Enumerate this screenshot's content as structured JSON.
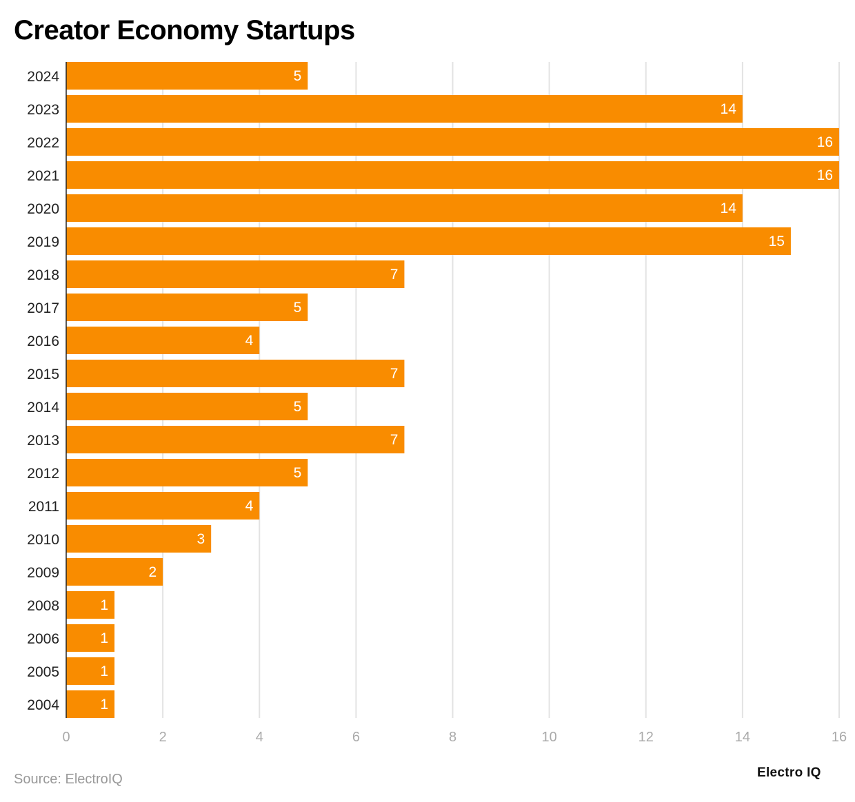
{
  "chart_data": {
    "type": "bar",
    "orientation": "horizontal",
    "title": "Creator Economy Startups",
    "categories": [
      "2024",
      "2023",
      "2022",
      "2021",
      "2020",
      "2019",
      "2018",
      "2017",
      "2016",
      "2015",
      "2014",
      "2013",
      "2012",
      "2011",
      "2010",
      "2009",
      "2008",
      "2006",
      "2005",
      "2004"
    ],
    "values": [
      5,
      14,
      16,
      16,
      14,
      15,
      7,
      5,
      4,
      7,
      5,
      7,
      5,
      4,
      3,
      2,
      1,
      1,
      1,
      1
    ],
    "xlim": [
      0,
      16
    ],
    "xticks": [
      0,
      2,
      4,
      6,
      8,
      10,
      12,
      14,
      16
    ],
    "xlabel": "",
    "ylabel": "",
    "grid": "vertical",
    "bar_color": "#F98C00",
    "data_labels": true
  },
  "footer": {
    "source": "Source: ElectroIQ",
    "logo": "Electro IQ"
  }
}
